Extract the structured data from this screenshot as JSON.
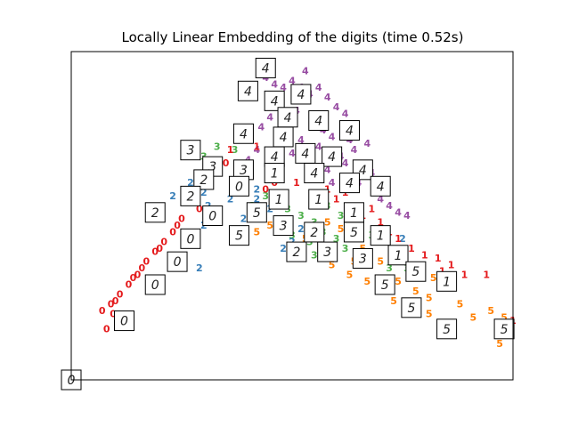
{
  "chart_data": {
    "type": "scatter",
    "title": "Locally Linear Embedding of the digits (time 0.52s)",
    "xlabel": "",
    "ylabel": "",
    "xlim": [
      0,
      1
    ],
    "ylim": [
      0,
      1
    ],
    "axis_ticks": false,
    "grid": false,
    "colors": {
      "0": "#e41a1c",
      "1": "#e41a1c",
      "2": "#377eb8",
      "3": "#4daf4a",
      "4": "#984ea3",
      "5": "#ff7f00"
    },
    "points": [
      {
        "label": "4",
        "x": 0.44,
        "y": 0.92
      },
      {
        "label": "4",
        "x": 0.46,
        "y": 0.9
      },
      {
        "label": "4",
        "x": 0.48,
        "y": 0.89
      },
      {
        "label": "4",
        "x": 0.5,
        "y": 0.91
      },
      {
        "label": "4",
        "x": 0.52,
        "y": 0.89
      },
      {
        "label": "4",
        "x": 0.54,
        "y": 0.87
      },
      {
        "label": "4",
        "x": 0.56,
        "y": 0.89
      },
      {
        "label": "4",
        "x": 0.58,
        "y": 0.86
      },
      {
        "label": "4",
        "x": 0.53,
        "y": 0.94
      },
      {
        "label": "4",
        "x": 0.6,
        "y": 0.83
      },
      {
        "label": "4",
        "x": 0.62,
        "y": 0.81
      },
      {
        "label": "4",
        "x": 0.47,
        "y": 0.85
      },
      {
        "label": "4",
        "x": 0.45,
        "y": 0.8
      },
      {
        "label": "4",
        "x": 0.49,
        "y": 0.78
      },
      {
        "label": "4",
        "x": 0.51,
        "y": 0.82
      },
      {
        "label": "4",
        "x": 0.55,
        "y": 0.79
      },
      {
        "label": "4",
        "x": 0.57,
        "y": 0.76
      },
      {
        "label": "4",
        "x": 0.59,
        "y": 0.74
      },
      {
        "label": "4",
        "x": 0.63,
        "y": 0.73
      },
      {
        "label": "4",
        "x": 0.64,
        "y": 0.7
      },
      {
        "label": "4",
        "x": 0.61,
        "y": 0.68
      },
      {
        "label": "4",
        "x": 0.66,
        "y": 0.65
      },
      {
        "label": "4",
        "x": 0.67,
        "y": 0.72
      },
      {
        "label": "4",
        "x": 0.43,
        "y": 0.77
      },
      {
        "label": "4",
        "x": 0.42,
        "y": 0.7
      },
      {
        "label": "4",
        "x": 0.5,
        "y": 0.69
      },
      {
        "label": "4",
        "x": 0.52,
        "y": 0.73
      },
      {
        "label": "4",
        "x": 0.54,
        "y": 0.66
      },
      {
        "label": "4",
        "x": 0.58,
        "y": 0.64
      },
      {
        "label": "4",
        "x": 0.65,
        "y": 0.6
      },
      {
        "label": "4",
        "x": 0.69,
        "y": 0.59
      },
      {
        "label": "4",
        "x": 0.7,
        "y": 0.55
      },
      {
        "label": "4",
        "x": 0.72,
        "y": 0.53
      },
      {
        "label": "4",
        "x": 0.74,
        "y": 0.51
      },
      {
        "label": "4",
        "x": 0.76,
        "y": 0.5
      },
      {
        "label": "4",
        "x": 0.47,
        "y": 0.75
      },
      {
        "label": "4",
        "x": 0.56,
        "y": 0.71
      },
      {
        "label": "4",
        "x": 0.62,
        "y": 0.66
      },
      {
        "label": "4",
        "x": 0.68,
        "y": 0.63
      },
      {
        "label": "4",
        "x": 0.4,
        "y": 0.67
      },
      {
        "label": "4",
        "x": 0.46,
        "y": 0.68
      },
      {
        "label": "4",
        "x": 0.59,
        "y": 0.6
      },
      {
        "label": "3",
        "x": 0.33,
        "y": 0.71
      },
      {
        "label": "3",
        "x": 0.37,
        "y": 0.7
      },
      {
        "label": "3",
        "x": 0.3,
        "y": 0.68
      },
      {
        "label": "3",
        "x": 0.44,
        "y": 0.56
      },
      {
        "label": "3",
        "x": 0.46,
        "y": 0.54
      },
      {
        "label": "3",
        "x": 0.49,
        "y": 0.52
      },
      {
        "label": "3",
        "x": 0.52,
        "y": 0.5
      },
      {
        "label": "3",
        "x": 0.55,
        "y": 0.48
      },
      {
        "label": "3",
        "x": 0.57,
        "y": 0.45
      },
      {
        "label": "3",
        "x": 0.54,
        "y": 0.42
      },
      {
        "label": "3",
        "x": 0.5,
        "y": 0.44
      },
      {
        "label": "3",
        "x": 0.47,
        "y": 0.48
      },
      {
        "label": "3",
        "x": 0.43,
        "y": 0.5
      },
      {
        "label": "3",
        "x": 0.41,
        "y": 0.53
      },
      {
        "label": "3",
        "x": 0.6,
        "y": 0.43
      },
      {
        "label": "3",
        "x": 0.62,
        "y": 0.4
      },
      {
        "label": "3",
        "x": 0.65,
        "y": 0.38
      },
      {
        "label": "3",
        "x": 0.67,
        "y": 0.37
      },
      {
        "label": "3",
        "x": 0.72,
        "y": 0.34
      },
      {
        "label": "3",
        "x": 0.76,
        "y": 0.34
      },
      {
        "label": "3",
        "x": 0.55,
        "y": 0.38
      },
      {
        "label": "3",
        "x": 0.61,
        "y": 0.5
      },
      {
        "label": "3",
        "x": 0.58,
        "y": 0.53
      },
      {
        "label": "3",
        "x": 0.68,
        "y": 0.44
      },
      {
        "label": "2",
        "x": 0.27,
        "y": 0.6
      },
      {
        "label": "2",
        "x": 0.3,
        "y": 0.57
      },
      {
        "label": "2",
        "x": 0.27,
        "y": 0.56
      },
      {
        "label": "2",
        "x": 0.23,
        "y": 0.56
      },
      {
        "label": "2",
        "x": 0.31,
        "y": 0.53
      },
      {
        "label": "2",
        "x": 0.38,
        "y": 0.57
      },
      {
        "label": "2",
        "x": 0.42,
        "y": 0.55
      },
      {
        "label": "2",
        "x": 0.45,
        "y": 0.52
      },
      {
        "label": "2",
        "x": 0.48,
        "y": 0.4
      },
      {
        "label": "2",
        "x": 0.5,
        "y": 0.42
      },
      {
        "label": "2",
        "x": 0.3,
        "y": 0.47
      },
      {
        "label": "2",
        "x": 0.29,
        "y": 0.34
      },
      {
        "label": "2",
        "x": 0.39,
        "y": 0.49
      },
      {
        "label": "2",
        "x": 0.52,
        "y": 0.46
      },
      {
        "label": "2",
        "x": 0.75,
        "y": 0.43
      },
      {
        "label": "2",
        "x": 0.42,
        "y": 0.58
      },
      {
        "label": "2",
        "x": 0.36,
        "y": 0.55
      },
      {
        "label": "1",
        "x": 0.36,
        "y": 0.7
      },
      {
        "label": "1",
        "x": 0.42,
        "y": 0.71
      },
      {
        "label": "1",
        "x": 0.51,
        "y": 0.6
      },
      {
        "label": "1",
        "x": 0.55,
        "y": 0.56
      },
      {
        "label": "1",
        "x": 0.58,
        "y": 0.58
      },
      {
        "label": "1",
        "x": 0.6,
        "y": 0.55
      },
      {
        "label": "1",
        "x": 0.63,
        "y": 0.52
      },
      {
        "label": "1",
        "x": 0.66,
        "y": 0.5
      },
      {
        "label": "1",
        "x": 0.68,
        "y": 0.52
      },
      {
        "label": "1",
        "x": 0.7,
        "y": 0.48
      },
      {
        "label": "1",
        "x": 0.72,
        "y": 0.45
      },
      {
        "label": "1",
        "x": 0.74,
        "y": 0.43
      },
      {
        "label": "1",
        "x": 0.77,
        "y": 0.4
      },
      {
        "label": "1",
        "x": 0.8,
        "y": 0.38
      },
      {
        "label": "1",
        "x": 0.83,
        "y": 0.37
      },
      {
        "label": "1",
        "x": 0.86,
        "y": 0.35
      },
      {
        "label": "1",
        "x": 0.89,
        "y": 0.32
      },
      {
        "label": "1",
        "x": 0.94,
        "y": 0.32
      },
      {
        "label": "1",
        "x": 0.79,
        "y": 0.34
      },
      {
        "label": "1",
        "x": 0.84,
        "y": 0.33
      },
      {
        "label": "1",
        "x": 1.0,
        "y": 0.18
      },
      {
        "label": "1",
        "x": 0.56,
        "y": 0.62
      },
      {
        "label": "1",
        "x": 0.62,
        "y": 0.57
      },
      {
        "label": "0",
        "x": 0.35,
        "y": 0.66
      },
      {
        "label": "0",
        "x": 0.29,
        "y": 0.52
      },
      {
        "label": "0",
        "x": 0.25,
        "y": 0.49
      },
      {
        "label": "0",
        "x": 0.23,
        "y": 0.45
      },
      {
        "label": "0",
        "x": 0.21,
        "y": 0.42
      },
      {
        "label": "0",
        "x": 0.19,
        "y": 0.39
      },
      {
        "label": "0",
        "x": 0.17,
        "y": 0.36
      },
      {
        "label": "0",
        "x": 0.15,
        "y": 0.32
      },
      {
        "label": "0",
        "x": 0.13,
        "y": 0.29
      },
      {
        "label": "0",
        "x": 0.11,
        "y": 0.26
      },
      {
        "label": "0",
        "x": 0.09,
        "y": 0.23
      },
      {
        "label": "0",
        "x": 0.07,
        "y": 0.21
      },
      {
        "label": "0",
        "x": 0.14,
        "y": 0.31
      },
      {
        "label": "0",
        "x": 0.16,
        "y": 0.34
      },
      {
        "label": "0",
        "x": 0.2,
        "y": 0.4
      },
      {
        "label": "0",
        "x": 0.24,
        "y": 0.47
      },
      {
        "label": "0",
        "x": 0.1,
        "y": 0.24
      },
      {
        "label": "0",
        "x": 0.095,
        "y": 0.2
      },
      {
        "label": "0",
        "x": 0.08,
        "y": 0.155
      },
      {
        "label": "0",
        "x": 0.44,
        "y": 0.58
      },
      {
        "label": "0",
        "x": 0.46,
        "y": 0.6
      },
      {
        "label": "5",
        "x": 0.45,
        "y": 0.47
      },
      {
        "label": "5",
        "x": 0.49,
        "y": 0.45
      },
      {
        "label": "5",
        "x": 0.53,
        "y": 0.43
      },
      {
        "label": "5",
        "x": 0.58,
        "y": 0.48
      },
      {
        "label": "5",
        "x": 0.61,
        "y": 0.46
      },
      {
        "label": "5",
        "x": 0.64,
        "y": 0.44
      },
      {
        "label": "5",
        "x": 0.59,
        "y": 0.35
      },
      {
        "label": "5",
        "x": 0.63,
        "y": 0.32
      },
      {
        "label": "5",
        "x": 0.67,
        "y": 0.3
      },
      {
        "label": "5",
        "x": 0.7,
        "y": 0.28
      },
      {
        "label": "5",
        "x": 0.74,
        "y": 0.3
      },
      {
        "label": "5",
        "x": 0.78,
        "y": 0.27
      },
      {
        "label": "5",
        "x": 0.81,
        "y": 0.25
      },
      {
        "label": "5",
        "x": 0.82,
        "y": 0.31
      },
      {
        "label": "5",
        "x": 0.86,
        "y": 0.28
      },
      {
        "label": "5",
        "x": 0.88,
        "y": 0.23
      },
      {
        "label": "5",
        "x": 0.91,
        "y": 0.19
      },
      {
        "label": "5",
        "x": 0.95,
        "y": 0.21
      },
      {
        "label": "5",
        "x": 0.98,
        "y": 0.19
      },
      {
        "label": "5",
        "x": 0.97,
        "y": 0.11
      },
      {
        "label": "5",
        "x": 0.99,
        "y": 0.14
      },
      {
        "label": "5",
        "x": 0.756,
        "y": 0.37
      },
      {
        "label": "5",
        "x": 0.7,
        "y": 0.36
      },
      {
        "label": "5",
        "x": 0.66,
        "y": 0.4
      },
      {
        "label": "5",
        "x": 0.81,
        "y": 0.2
      },
      {
        "label": "5",
        "x": 0.73,
        "y": 0.24
      },
      {
        "label": "5",
        "x": 0.64,
        "y": 0.36
      },
      {
        "label": "5",
        "x": 0.42,
        "y": 0.45
      }
    ],
    "thumbnails": [
      {
        "digit": "4",
        "x": 0.44,
        "y": 0.95
      },
      {
        "digit": "4",
        "x": 0.4,
        "y": 0.88
      },
      {
        "digit": "4",
        "x": 0.46,
        "y": 0.85
      },
      {
        "digit": "4",
        "x": 0.52,
        "y": 0.87
      },
      {
        "digit": "4",
        "x": 0.49,
        "y": 0.8
      },
      {
        "digit": "4",
        "x": 0.56,
        "y": 0.79
      },
      {
        "digit": "4",
        "x": 0.63,
        "y": 0.76
      },
      {
        "digit": "4",
        "x": 0.39,
        "y": 0.75
      },
      {
        "digit": "4",
        "x": 0.48,
        "y": 0.74
      },
      {
        "digit": "4",
        "x": 0.46,
        "y": 0.68
      },
      {
        "digit": "4",
        "x": 0.53,
        "y": 0.69
      },
      {
        "digit": "4",
        "x": 0.59,
        "y": 0.68
      },
      {
        "digit": "4",
        "x": 0.66,
        "y": 0.64
      },
      {
        "digit": "4",
        "x": 0.55,
        "y": 0.63
      },
      {
        "digit": "4",
        "x": 0.63,
        "y": 0.6
      },
      {
        "digit": "4",
        "x": 0.7,
        "y": 0.59
      },
      {
        "digit": "3",
        "x": 0.27,
        "y": 0.7
      },
      {
        "digit": "3",
        "x": 0.32,
        "y": 0.65
      },
      {
        "digit": "3",
        "x": 0.39,
        "y": 0.64
      },
      {
        "digit": "3",
        "x": 0.48,
        "y": 0.47
      },
      {
        "digit": "3",
        "x": 0.58,
        "y": 0.39
      },
      {
        "digit": "3",
        "x": 0.66,
        "y": 0.37
      },
      {
        "digit": "1",
        "x": 0.46,
        "y": 0.63
      },
      {
        "digit": "1",
        "x": 0.47,
        "y": 0.55
      },
      {
        "digit": "1",
        "x": 0.56,
        "y": 0.55
      },
      {
        "digit": "1",
        "x": 0.64,
        "y": 0.51
      },
      {
        "digit": "1",
        "x": 0.7,
        "y": 0.44
      },
      {
        "digit": "1",
        "x": 0.74,
        "y": 0.38
      },
      {
        "digit": "1",
        "x": 0.85,
        "y": 0.3
      },
      {
        "digit": "2",
        "x": 0.3,
        "y": 0.61
      },
      {
        "digit": "2",
        "x": 0.27,
        "y": 0.56
      },
      {
        "digit": "2",
        "x": 0.19,
        "y": 0.51
      },
      {
        "digit": "2",
        "x": 0.55,
        "y": 0.45
      },
      {
        "digit": "2",
        "x": 0.51,
        "y": 0.39
      },
      {
        "digit": "0",
        "x": 0.38,
        "y": 0.59
      },
      {
        "digit": "0",
        "x": 0.32,
        "y": 0.5
      },
      {
        "digit": "0",
        "x": 0.27,
        "y": 0.43
      },
      {
        "digit": "0",
        "x": 0.24,
        "y": 0.36
      },
      {
        "digit": "0",
        "x": 0.19,
        "y": 0.29
      },
      {
        "digit": "0",
        "x": 0.12,
        "y": 0.18
      },
      {
        "digit": "0",
        "x": 0.0,
        "y": 0.0
      },
      {
        "digit": "5",
        "x": 0.42,
        "y": 0.51
      },
      {
        "digit": "5",
        "x": 0.38,
        "y": 0.44
      },
      {
        "digit": "5",
        "x": 0.64,
        "y": 0.45
      },
      {
        "digit": "5",
        "x": 0.78,
        "y": 0.33
      },
      {
        "digit": "5",
        "x": 0.71,
        "y": 0.29
      },
      {
        "digit": "5",
        "x": 0.77,
        "y": 0.22
      },
      {
        "digit": "5",
        "x": 0.85,
        "y": 0.155
      },
      {
        "digit": "5",
        "x": 0.98,
        "y": 0.155
      }
    ]
  }
}
